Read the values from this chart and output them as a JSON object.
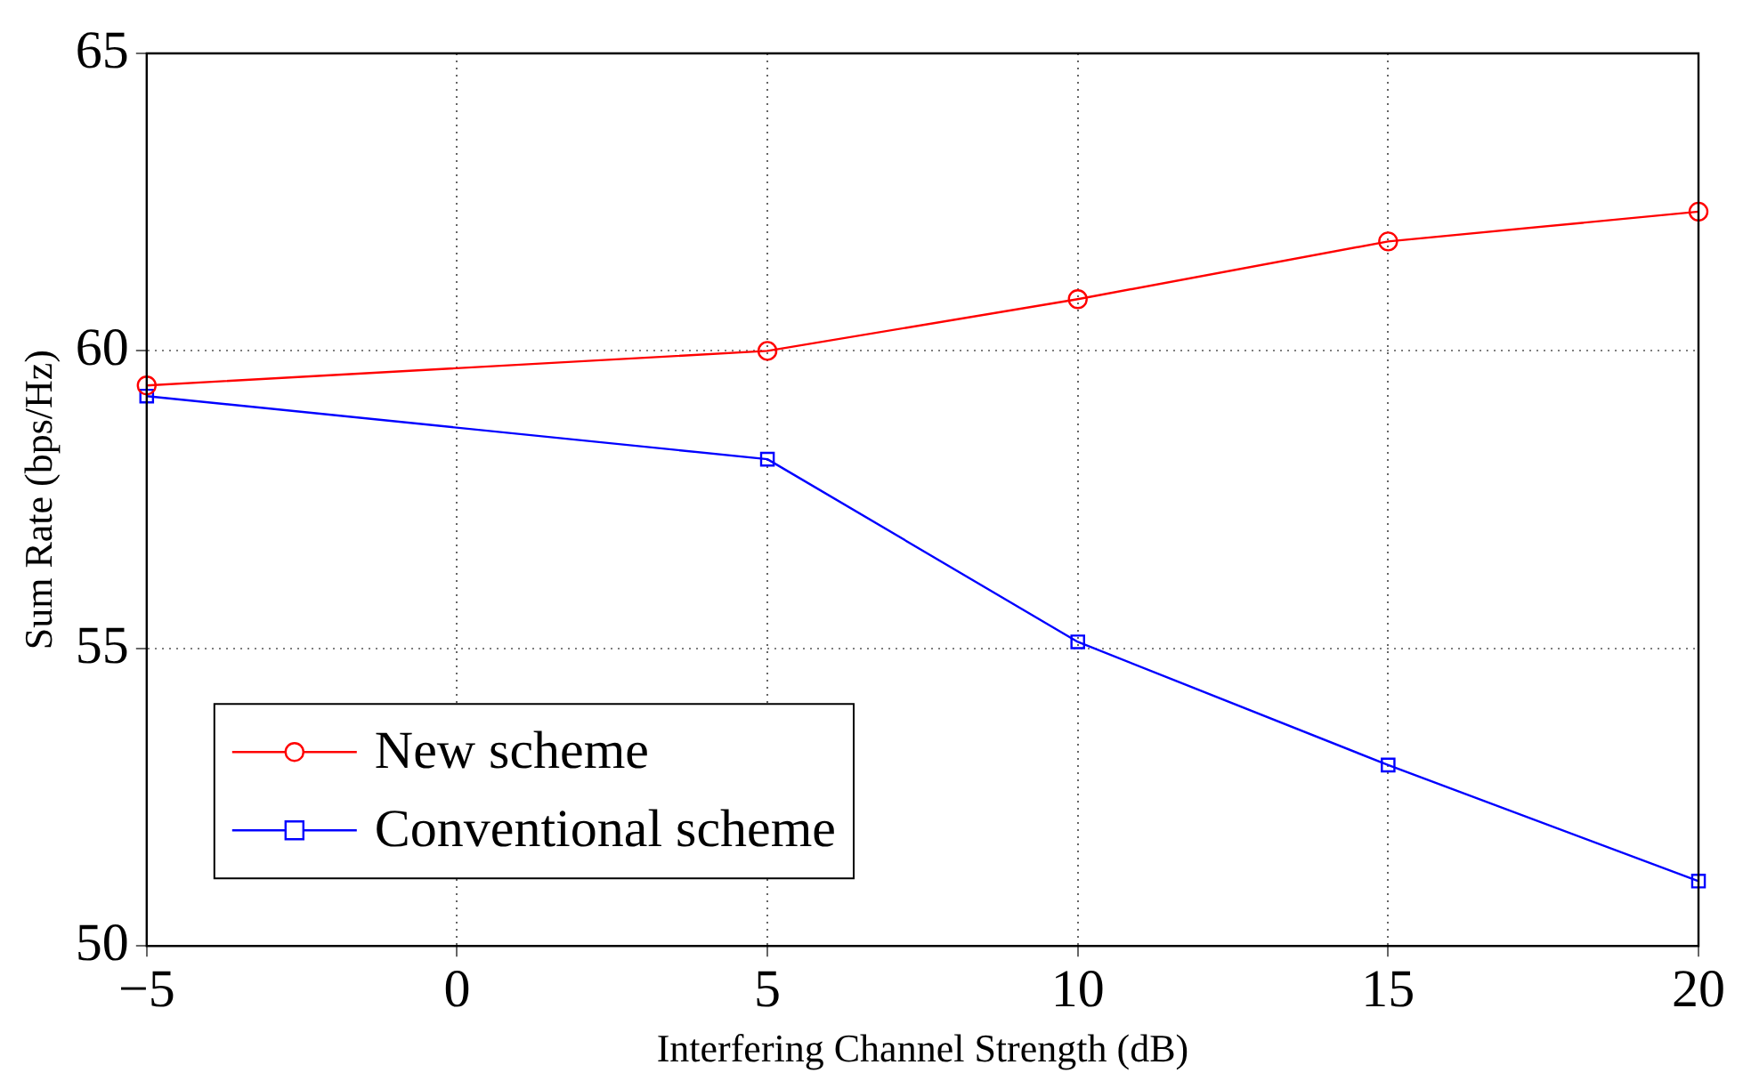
{
  "chart_data": {
    "type": "line",
    "xlabel": "Interfering Channel Strength (dB)",
    "ylabel": "Sum Rate (bps/Hz)",
    "x": [
      -5,
      5,
      10,
      15,
      20
    ],
    "series": [
      {
        "name": "New scheme",
        "color": "#ff0000",
        "marker": "circle",
        "values": [
          59.42,
          60.0,
          60.87,
          61.84,
          62.34
        ]
      },
      {
        "name": "Conventional scheme",
        "color": "#0000ff",
        "marker": "square",
        "values": [
          59.24,
          58.18,
          55.11,
          53.04,
          51.09
        ]
      }
    ],
    "xlim": [
      -5,
      20
    ],
    "xticks": [
      {
        "value": -5,
        "label": "−5"
      },
      0,
      5,
      10,
      15,
      20
    ],
    "ylim": [
      50,
      65
    ],
    "yticks": [
      50,
      55,
      60,
      65
    ],
    "grid": true,
    "legend": "bottom left",
    "line_style": "solid"
  }
}
